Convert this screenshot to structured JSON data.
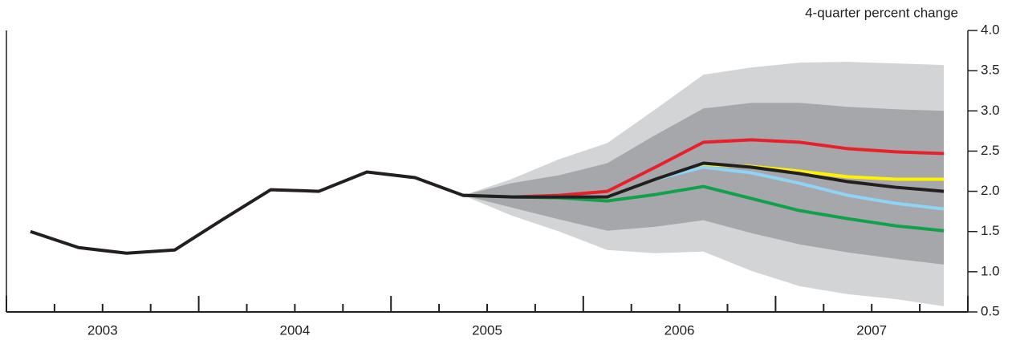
{
  "chart_data": {
    "type": "fan",
    "title": "4-quarter percent change",
    "x": [
      2003.125,
      2003.375,
      2003.625,
      2003.875,
      2004.125,
      2004.375,
      2004.625,
      2004.875,
      2005.125,
      2005.375,
      2005.625,
      2005.875,
      2006.125,
      2006.375,
      2006.625,
      2006.875,
      2007.125,
      2007.375,
      2007.625,
      2007.875
    ],
    "xlim": [
      2003,
      2008
    ],
    "xticks": [
      {
        "value": 2003.5,
        "label": "2003"
      },
      {
        "value": 2004.5,
        "label": "2004"
      },
      {
        "value": 2005.5,
        "label": "2005"
      },
      {
        "value": 2006.5,
        "label": "2006"
      },
      {
        "value": 2007.5,
        "label": "2007"
      }
    ],
    "ylim": [
      0.5,
      4
    ],
    "yticks": [
      0.5,
      {
        "value": 1,
        "label": "1.0"
      },
      1.5,
      {
        "value": 2,
        "label": "2.0"
      },
      2.5,
      {
        "value": 3,
        "label": "3.0"
      },
      3.5,
      {
        "value": 4,
        "label": "4.0"
      }
    ],
    "bands": [
      {
        "color": "#d3d4d6",
        "lower": [
          null,
          null,
          null,
          null,
          null,
          null,
          null,
          null,
          null,
          1.95,
          1.7,
          1.5,
          1.27,
          1.23,
          1.25,
          1.01,
          0.82,
          0.72,
          0.66,
          0.57
        ],
        "upper": [
          null,
          null,
          null,
          null,
          null,
          null,
          null,
          null,
          null,
          1.95,
          2.15,
          2.4,
          2.6,
          3.02,
          3.45,
          3.54,
          3.6,
          3.61,
          3.59,
          3.57
        ]
      },
      {
        "color": "#a6a7ab",
        "lower": [
          null,
          null,
          null,
          null,
          null,
          null,
          null,
          null,
          null,
          1.95,
          1.8,
          1.65,
          1.51,
          1.56,
          1.64,
          1.48,
          1.34,
          1.24,
          1.16,
          1.09
        ],
        "upper": [
          null,
          null,
          null,
          null,
          null,
          null,
          null,
          null,
          null,
          1.95,
          2.1,
          2.2,
          2.35,
          2.7,
          3.03,
          3.1,
          3.1,
          3.05,
          3.02,
          3.0
        ]
      }
    ],
    "series": [
      {
        "color": "#e8202a",
        "values": [
          null,
          null,
          null,
          null,
          null,
          null,
          null,
          null,
          null,
          1.95,
          1.93,
          1.95,
          2.0,
          2.3,
          2.61,
          2.64,
          2.61,
          2.53,
          2.49,
          2.47
        ]
      },
      {
        "color": "#fff200",
        "values": [
          null,
          null,
          null,
          null,
          null,
          null,
          null,
          null,
          null,
          1.95,
          1.93,
          1.93,
          1.93,
          2.15,
          2.33,
          2.31,
          2.25,
          2.18,
          2.15,
          2.15
        ]
      },
      {
        "color": "#8fd3f5",
        "values": [
          null,
          null,
          null,
          null,
          null,
          null,
          null,
          null,
          null,
          1.95,
          1.93,
          1.93,
          1.93,
          2.15,
          2.3,
          2.23,
          2.1,
          1.95,
          1.85,
          1.78
        ]
      },
      {
        "color": "#12a14b",
        "values": [
          null,
          null,
          null,
          null,
          null,
          null,
          null,
          null,
          null,
          1.95,
          1.93,
          1.92,
          1.88,
          1.96,
          2.06,
          1.91,
          1.76,
          1.66,
          1.57,
          1.51
        ]
      },
      {
        "color": "#231f20",
        "values": [
          1.5,
          1.3,
          1.23,
          1.27,
          1.65,
          2.02,
          2.0,
          2.24,
          2.17,
          1.95,
          1.93,
          1.93,
          1.93,
          2.15,
          2.35,
          2.3,
          2.22,
          2.12,
          2.05,
          2.0
        ]
      }
    ]
  }
}
